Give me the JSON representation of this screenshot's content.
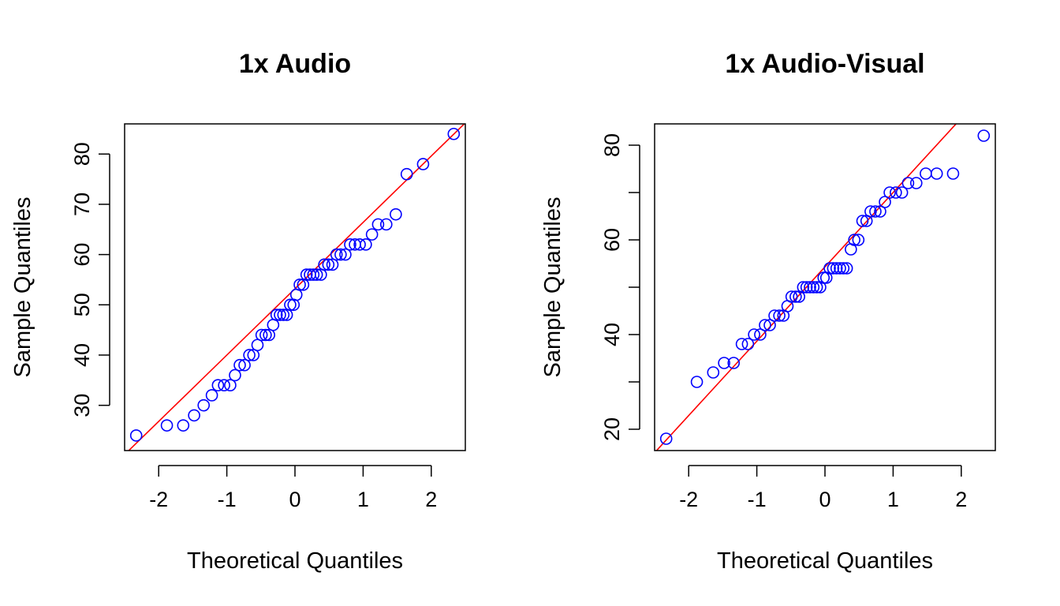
{
  "chart_data": [
    {
      "type": "scatter",
      "title": "1x Audio",
      "xlabel": "Theoretical Quantiles",
      "ylabel": "Sample Quantiles",
      "xlim": [
        -2.5,
        2.5
      ],
      "ylim": [
        21,
        86
      ],
      "xticks": [
        -2,
        -1,
        0,
        1,
        2
      ],
      "yticks": [
        30,
        40,
        50,
        60,
        70,
        80
      ],
      "grid": false,
      "point_color": "#0000ff",
      "line_color": "#ff0000",
      "qq_line": {
        "intercept": 53.2,
        "slope": 13.2
      },
      "points": [
        [
          -2.33,
          24
        ],
        [
          -1.88,
          26
        ],
        [
          -1.64,
          26
        ],
        [
          -1.48,
          28
        ],
        [
          -1.34,
          30
        ],
        [
          -1.22,
          32
        ],
        [
          -1.13,
          34
        ],
        [
          -1.04,
          34
        ],
        [
          -0.95,
          34
        ],
        [
          -0.88,
          36
        ],
        [
          -0.81,
          38
        ],
        [
          -0.74,
          38
        ],
        [
          -0.67,
          40
        ],
        [
          -0.61,
          40
        ],
        [
          -0.55,
          42
        ],
        [
          -0.49,
          44
        ],
        [
          -0.43,
          44
        ],
        [
          -0.38,
          44
        ],
        [
          -0.32,
          46
        ],
        [
          -0.27,
          48
        ],
        [
          -0.22,
          48
        ],
        [
          -0.17,
          48
        ],
        [
          -0.12,
          48
        ],
        [
          -0.07,
          50
        ],
        [
          -0.02,
          50
        ],
        [
          0.02,
          52
        ],
        [
          0.07,
          54
        ],
        [
          0.12,
          54
        ],
        [
          0.17,
          56
        ],
        [
          0.22,
          56
        ],
        [
          0.27,
          56
        ],
        [
          0.32,
          56
        ],
        [
          0.38,
          56
        ],
        [
          0.43,
          58
        ],
        [
          0.49,
          58
        ],
        [
          0.55,
          58
        ],
        [
          0.61,
          60
        ],
        [
          0.67,
          60
        ],
        [
          0.74,
          60
        ],
        [
          0.81,
          62
        ],
        [
          0.88,
          62
        ],
        [
          0.95,
          62
        ],
        [
          1.04,
          62
        ],
        [
          1.13,
          64
        ],
        [
          1.22,
          66
        ],
        [
          1.34,
          66
        ],
        [
          1.48,
          68
        ],
        [
          1.64,
          76
        ],
        [
          1.88,
          78
        ],
        [
          2.33,
          84
        ]
      ]
    },
    {
      "type": "scatter",
      "title": "1x Audio-Visual",
      "xlabel": "Theoretical Quantiles",
      "ylabel": "Sample Quantiles",
      "xlim": [
        -2.5,
        2.5
      ],
      "ylim": [
        15.5,
        84.5
      ],
      "xticks": [
        -2,
        -1,
        0,
        1,
        2
      ],
      "yticks": [
        20,
        30,
        40,
        50,
        60,
        70,
        80
      ],
      "ytick_labels": [
        "20",
        "",
        "40",
        "",
        "60",
        "",
        "80"
      ],
      "grid": false,
      "point_color": "#0000ff",
      "line_color": "#ff0000",
      "qq_line": {
        "intercept": 54.3,
        "slope": 15.7
      },
      "points": [
        [
          -2.33,
          18
        ],
        [
          -1.88,
          30
        ],
        [
          -1.64,
          32
        ],
        [
          -1.48,
          34
        ],
        [
          -1.34,
          34
        ],
        [
          -1.22,
          38
        ],
        [
          -1.13,
          38
        ],
        [
          -1.04,
          40
        ],
        [
          -0.95,
          40
        ],
        [
          -0.88,
          42
        ],
        [
          -0.81,
          42
        ],
        [
          -0.74,
          44
        ],
        [
          -0.67,
          44
        ],
        [
          -0.61,
          44
        ],
        [
          -0.55,
          46
        ],
        [
          -0.49,
          48
        ],
        [
          -0.43,
          48
        ],
        [
          -0.38,
          48
        ],
        [
          -0.32,
          50
        ],
        [
          -0.27,
          50
        ],
        [
          -0.22,
          50
        ],
        [
          -0.17,
          50
        ],
        [
          -0.12,
          50
        ],
        [
          -0.07,
          50
        ],
        [
          -0.02,
          52
        ],
        [
          0.02,
          52
        ],
        [
          0.07,
          54
        ],
        [
          0.12,
          54
        ],
        [
          0.17,
          54
        ],
        [
          0.22,
          54
        ],
        [
          0.27,
          54
        ],
        [
          0.32,
          54
        ],
        [
          0.38,
          58
        ],
        [
          0.43,
          60
        ],
        [
          0.49,
          60
        ],
        [
          0.55,
          64
        ],
        [
          0.61,
          64
        ],
        [
          0.67,
          66
        ],
        [
          0.74,
          66
        ],
        [
          0.81,
          66
        ],
        [
          0.88,
          68
        ],
        [
          0.95,
          70
        ],
        [
          1.04,
          70
        ],
        [
          1.13,
          70
        ],
        [
          1.22,
          72
        ],
        [
          1.34,
          72
        ],
        [
          1.48,
          74
        ],
        [
          1.64,
          74
        ],
        [
          1.88,
          74
        ],
        [
          2.33,
          82
        ]
      ]
    }
  ]
}
